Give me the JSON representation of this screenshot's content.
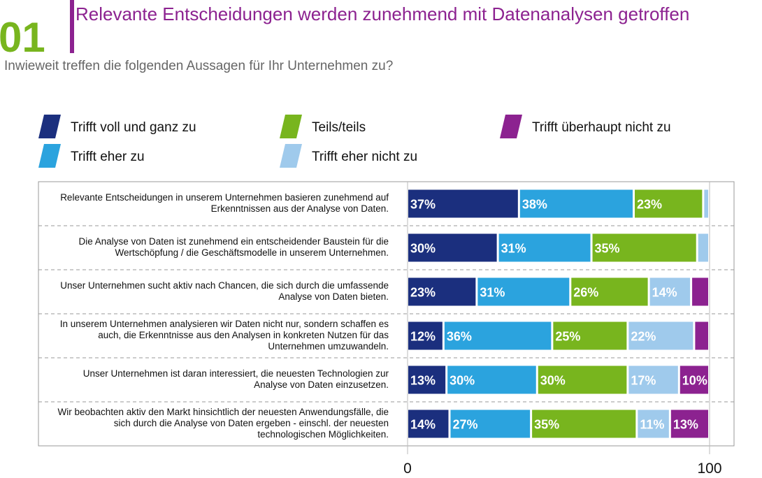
{
  "chart_data": {
    "type": "stacked-bar-horizontal",
    "badge": "01",
    "title": "Relevante Entscheidungen werden zunehmend mit Datenanalysen getroffen",
    "subtitle": "Inwieweit treffen die folgenden Aussagen für Ihr Unternehmen zu?",
    "categories": [
      "Relevante Entscheidungen in unserem Unternehmen basieren zunehmend auf Erkenntnissen aus der Analyse von Daten.",
      "Die Analyse von Daten ist zunehmend ein entscheidender Baustein für die Wertschöpfung / die Geschäftsmodelle in unserem Unternehmen.",
      "Unser Unternehmen sucht aktiv nach Chancen, die sich durch die umfassende Analyse von Daten bieten.",
      "In unserem Unternehmen analysieren wir Daten nicht nur, sondern schaffen es auch, die Erkenntnisse aus den Analysen in konkreten Nutzen für das Unternehmen umzuwandeln.",
      "Unser Unternehmen ist daran interessiert, die neuesten Technologien zur Analyse von Daten einzusetzen.",
      "Wir beobachten aktiv den Markt hinsichtlich der neuesten Anwendungsfälle, die sich durch die Analyse von Daten ergeben - einschl. der neuesten technologischen Möglichkeiten."
    ],
    "series": [
      {
        "name": "Trifft voll und ganz zu",
        "color": "#1b2f7e",
        "values": [
          37,
          30,
          23,
          12,
          13,
          14
        ],
        "value_labels": [
          "37%",
          "30%",
          "23%",
          "12%",
          "13%",
          "14%"
        ]
      },
      {
        "name": "Trifft eher zu",
        "color": "#2ba3de",
        "values": [
          38,
          31,
          31,
          36,
          30,
          27
        ],
        "value_labels": [
          "38%",
          "31%",
          "31%",
          "36%",
          "30%",
          "27%"
        ]
      },
      {
        "name": "Teils/teils",
        "color": "#78b51e",
        "values": [
          23,
          35,
          26,
          25,
          30,
          35
        ],
        "value_labels": [
          "23%",
          "35%",
          "26%",
          "25%",
          "30%",
          "35%"
        ]
      },
      {
        "name": "Trifft eher nicht zu",
        "color": "#9fcaec",
        "values": [
          2,
          4,
          14,
          22,
          17,
          11
        ],
        "value_labels": [
          null,
          null,
          "14%",
          "22%",
          "17%",
          "11%"
        ]
      },
      {
        "name": "Trifft überhaupt nicht zu",
        "color": "#8c2290",
        "values": [
          0,
          0,
          6,
          5,
          10,
          13
        ],
        "value_labels": [
          null,
          null,
          null,
          null,
          "10%",
          "13%"
        ]
      }
    ],
    "xlim": [
      0,
      100
    ],
    "xticks": [
      0,
      100
    ]
  }
}
